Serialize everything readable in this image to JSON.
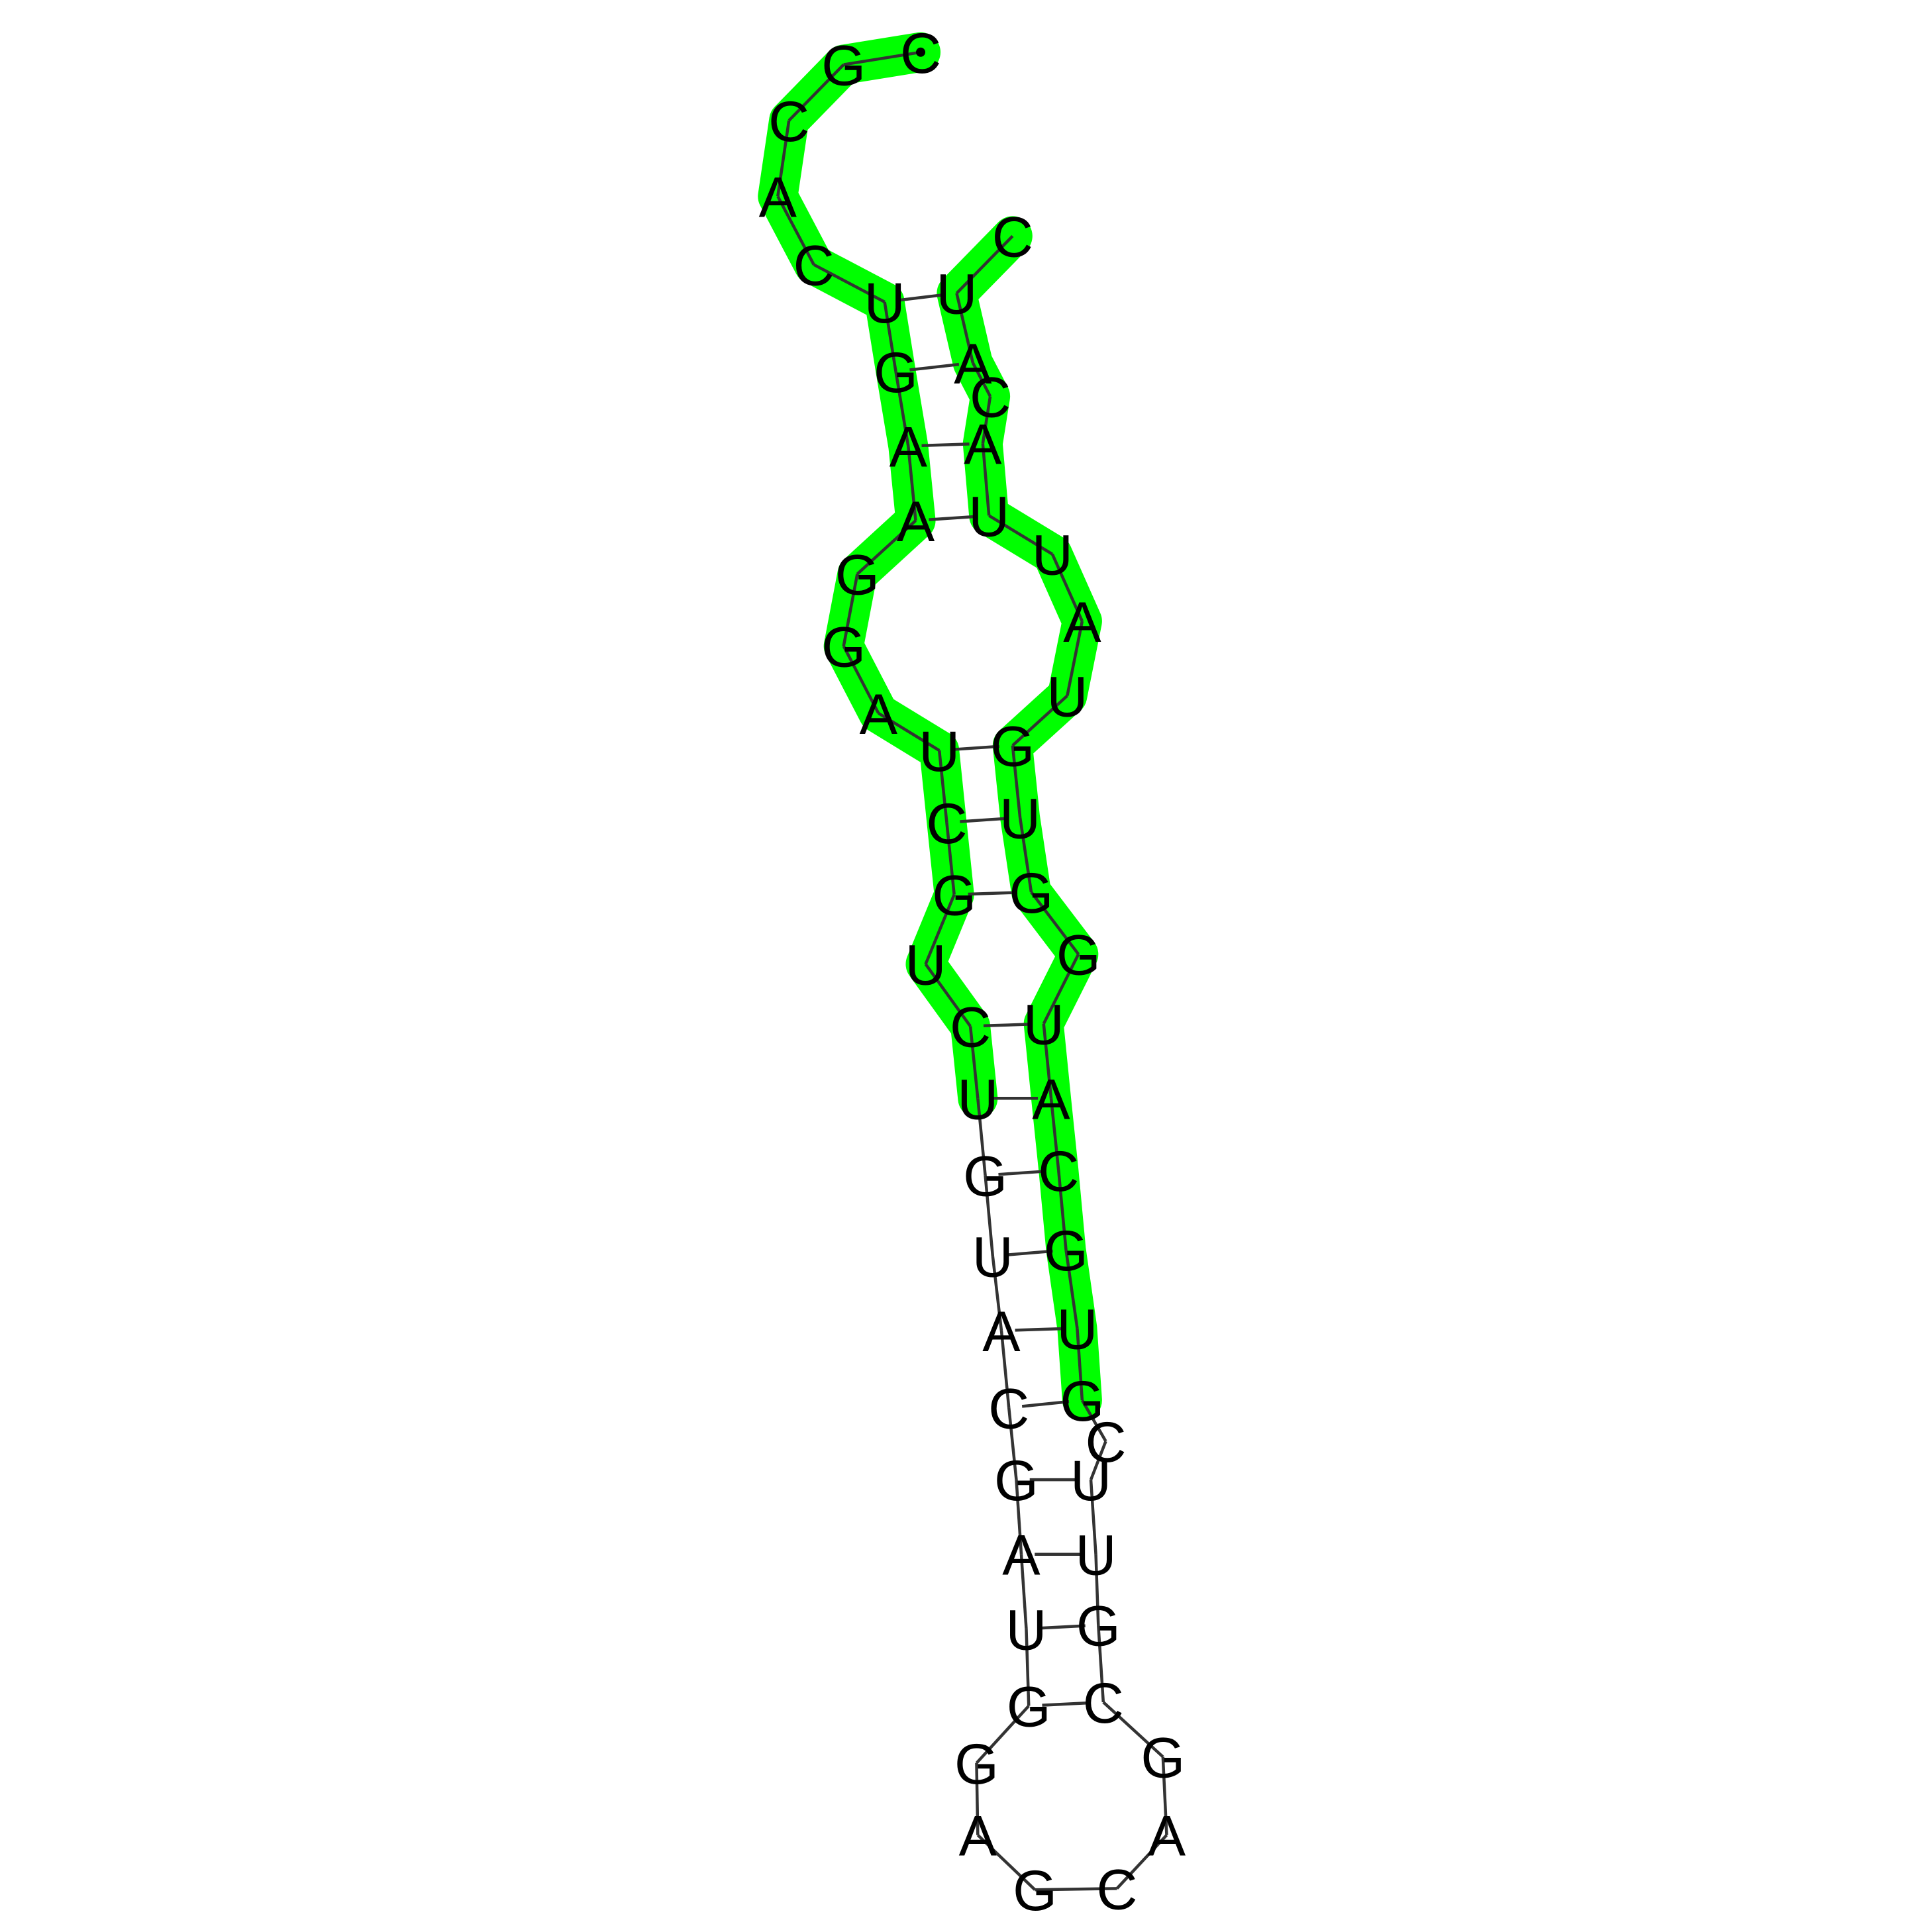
{
  "structure": {
    "sequence": "CGCACUGAAGGAUCGUCUGUACGAUGGAGCAGCGUUCGUGCAUGGUGUAUUACAUC",
    "highlight_color": "#00ff00",
    "backbone_color": "#333333",
    "pair_color": "#333333",
    "text_color": "#000000",
    "highlighted": [
      1,
      2,
      3,
      4,
      5,
      6,
      7,
      8,
      9,
      10,
      11,
      12,
      13,
      14,
      15,
      16,
      17,
      18,
      38,
      39,
      40,
      41,
      42,
      43,
      44,
      45,
      46,
      47,
      48,
      49,
      50,
      51,
      52,
      53,
      54,
      55,
      56
    ]
  }
}
